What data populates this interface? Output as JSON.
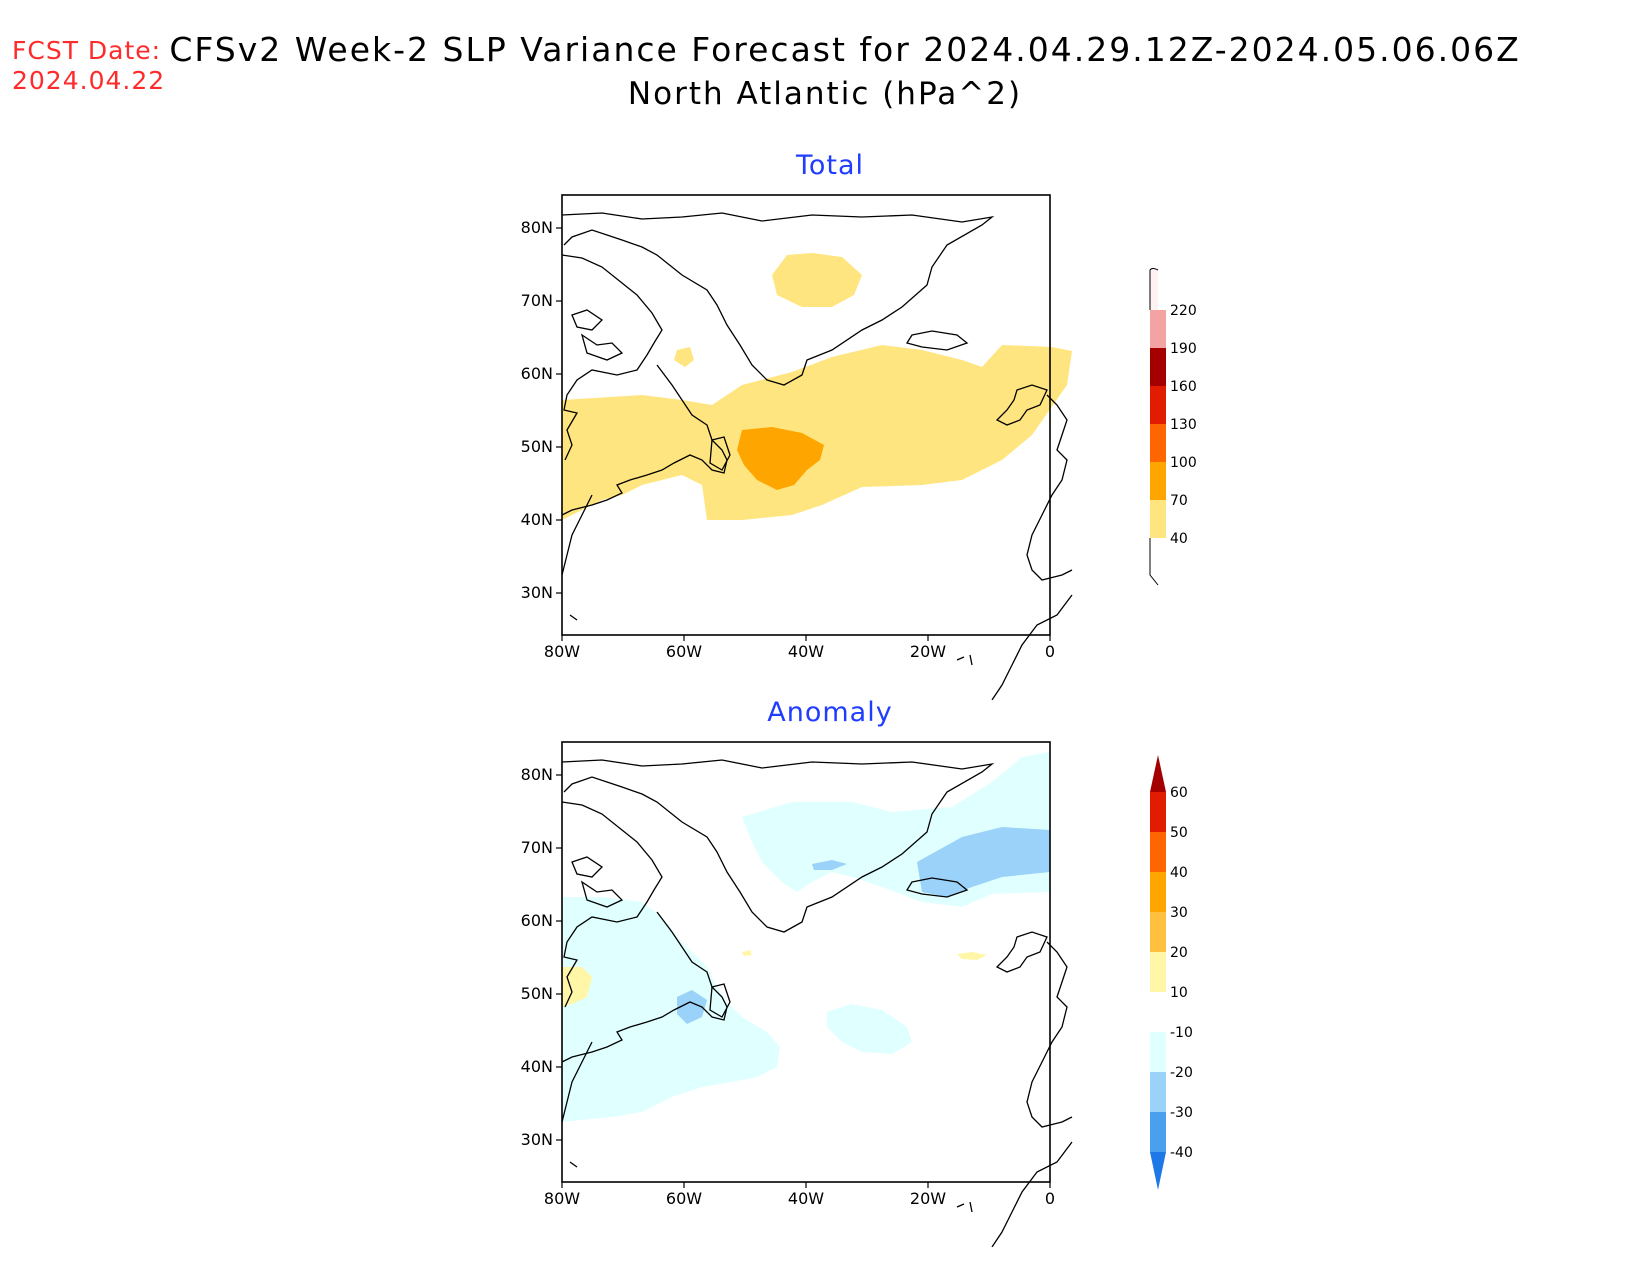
{
  "header": {
    "fcst_label": "FCST Date:",
    "fcst_date": "2024.04.22",
    "title": "CFSv2 Week-2 SLP Variance Forecast for 2024.04.29.12Z-2024.05.06.06Z",
    "subtitle": "North Atlantic (hPa^2)"
  },
  "axes": {
    "lat_labels": [
      "80N",
      "70N",
      "60N",
      "50N",
      "40N",
      "30N"
    ],
    "lon_labels": [
      "80W",
      "60W",
      "40W",
      "20W",
      "0"
    ],
    "lat_range": [
      25,
      85
    ],
    "lon_range": [
      -80,
      0
    ]
  },
  "panels": [
    {
      "title": "Total",
      "colorbar": {
        "labels": [
          "220",
          "190",
          "160",
          "130",
          "100",
          "70",
          "40"
        ],
        "colors": [
          "#ffe0e0",
          "#f4a3a3",
          "#a50000",
          "#e21c00",
          "#ff6600",
          "#ffa500",
          "#ffe57f"
        ]
      }
    },
    {
      "title": "Anomaly",
      "colorbar": {
        "labels": [
          "60",
          "50",
          "40",
          "30",
          "20",
          "10",
          "-10",
          "-20",
          "-30",
          "-40"
        ],
        "colors": [
          "#a50000",
          "#e21c00",
          "#ff6600",
          "#ffa500",
          "#ffc040",
          "#fff6a8",
          "#ffffff",
          "#e0ffff",
          "#9ad2f9",
          "#4aa0ee",
          "#1e78e6"
        ]
      }
    }
  ]
}
